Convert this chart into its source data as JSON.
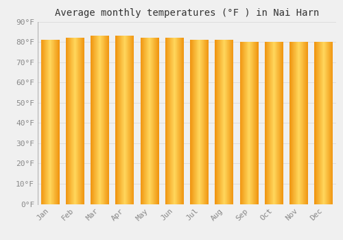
{
  "title": "Average monthly temperatures (°F ) in Nai Harn",
  "months": [
    "Jan",
    "Feb",
    "Mar",
    "Apr",
    "May",
    "Jun",
    "Jul",
    "Aug",
    "Sep",
    "Oct",
    "Nov",
    "Dec"
  ],
  "values": [
    81,
    82,
    83,
    83,
    82,
    82,
    81,
    81,
    80,
    80,
    80,
    80
  ],
  "ylim": [
    0,
    90
  ],
  "yticks": [
    0,
    10,
    20,
    30,
    40,
    50,
    60,
    70,
    80,
    90
  ],
  "bar_color_center": "#FFD55A",
  "bar_color_edge": "#F0930A",
  "background_color": "#f0f0f0",
  "grid_color": "#dddddd",
  "title_fontsize": 10,
  "tick_fontsize": 8,
  "bar_width": 0.75,
  "font_family": "monospace"
}
